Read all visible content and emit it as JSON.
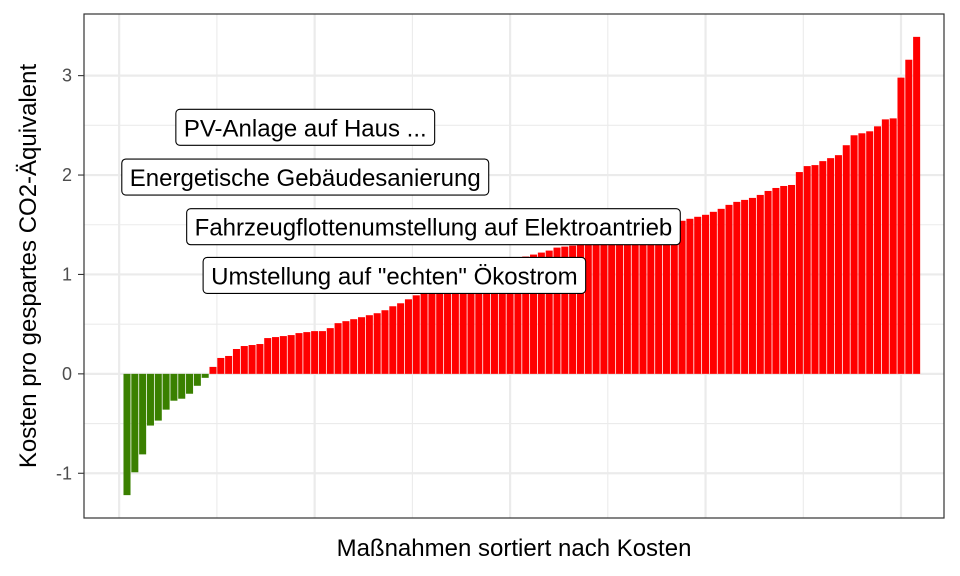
{
  "chart_data": {
    "type": "bar",
    "xlabel": "Maßnahmen sortiert nach Kosten",
    "ylabel": "Kosten pro gespartes CO2-Äquivalent",
    "ylim": [
      -1.45,
      3.62
    ],
    "y_ticks": [
      -1,
      0,
      1,
      2,
      3
    ],
    "y_tick_labels": [
      "-1",
      "0",
      "1",
      "2",
      "3"
    ],
    "x_ticks": [
      0,
      25,
      50,
      75,
      100
    ],
    "xlim": [
      -4.5,
      105.5
    ],
    "grid": true,
    "colors": {
      "negative": "#3a8000",
      "positive": "#ff0000",
      "panel_border": "#333333",
      "grid": "#ebebeb"
    },
    "values": [
      -1.22,
      -0.99,
      -0.81,
      -0.52,
      -0.47,
      -0.36,
      -0.27,
      -0.25,
      -0.2,
      -0.12,
      -0.04,
      0.07,
      0.16,
      0.18,
      0.25,
      0.28,
      0.29,
      0.3,
      0.36,
      0.37,
      0.38,
      0.39,
      0.41,
      0.42,
      0.43,
      0.43,
      0.46,
      0.51,
      0.53,
      0.55,
      0.57,
      0.59,
      0.61,
      0.64,
      0.68,
      0.71,
      0.75,
      0.79,
      0.82,
      0.86,
      0.88,
      0.92,
      0.96,
      0.98,
      1.01,
      1.04,
      1.07,
      1.1,
      1.12,
      1.14,
      1.16,
      1.18,
      1.2,
      1.22,
      1.24,
      1.27,
      1.28,
      1.29,
      1.3,
      1.31,
      1.32,
      1.34,
      1.36,
      1.38,
      1.4,
      1.42,
      1.44,
      1.46,
      1.48,
      1.5,
      1.52,
      1.54,
      1.56,
      1.58,
      1.6,
      1.63,
      1.66,
      1.7,
      1.73,
      1.75,
      1.77,
      1.8,
      1.84,
      1.87,
      1.89,
      1.9,
      2.03,
      2.09,
      2.1,
      2.14,
      2.17,
      2.2,
      2.3,
      2.4,
      2.42,
      2.44,
      2.49,
      2.56,
      2.57,
      2.98,
      3.16,
      3.39
    ],
    "annotations": [
      {
        "label": "PV-Anlage auf Haus ...",
        "x": 23.8,
        "y": 2.48
      },
      {
        "label": "Energetische Gebäudesanierung",
        "x": 23.8,
        "y": 1.98
      },
      {
        "label": "Fahrzeugflottenumstellung auf Elektroantrieb",
        "x": 40.2,
        "y": 1.48
      },
      {
        "label": "Umstellung auf \"echten\" Ökostrom",
        "x": 35.2,
        "y": 0.99
      }
    ]
  }
}
